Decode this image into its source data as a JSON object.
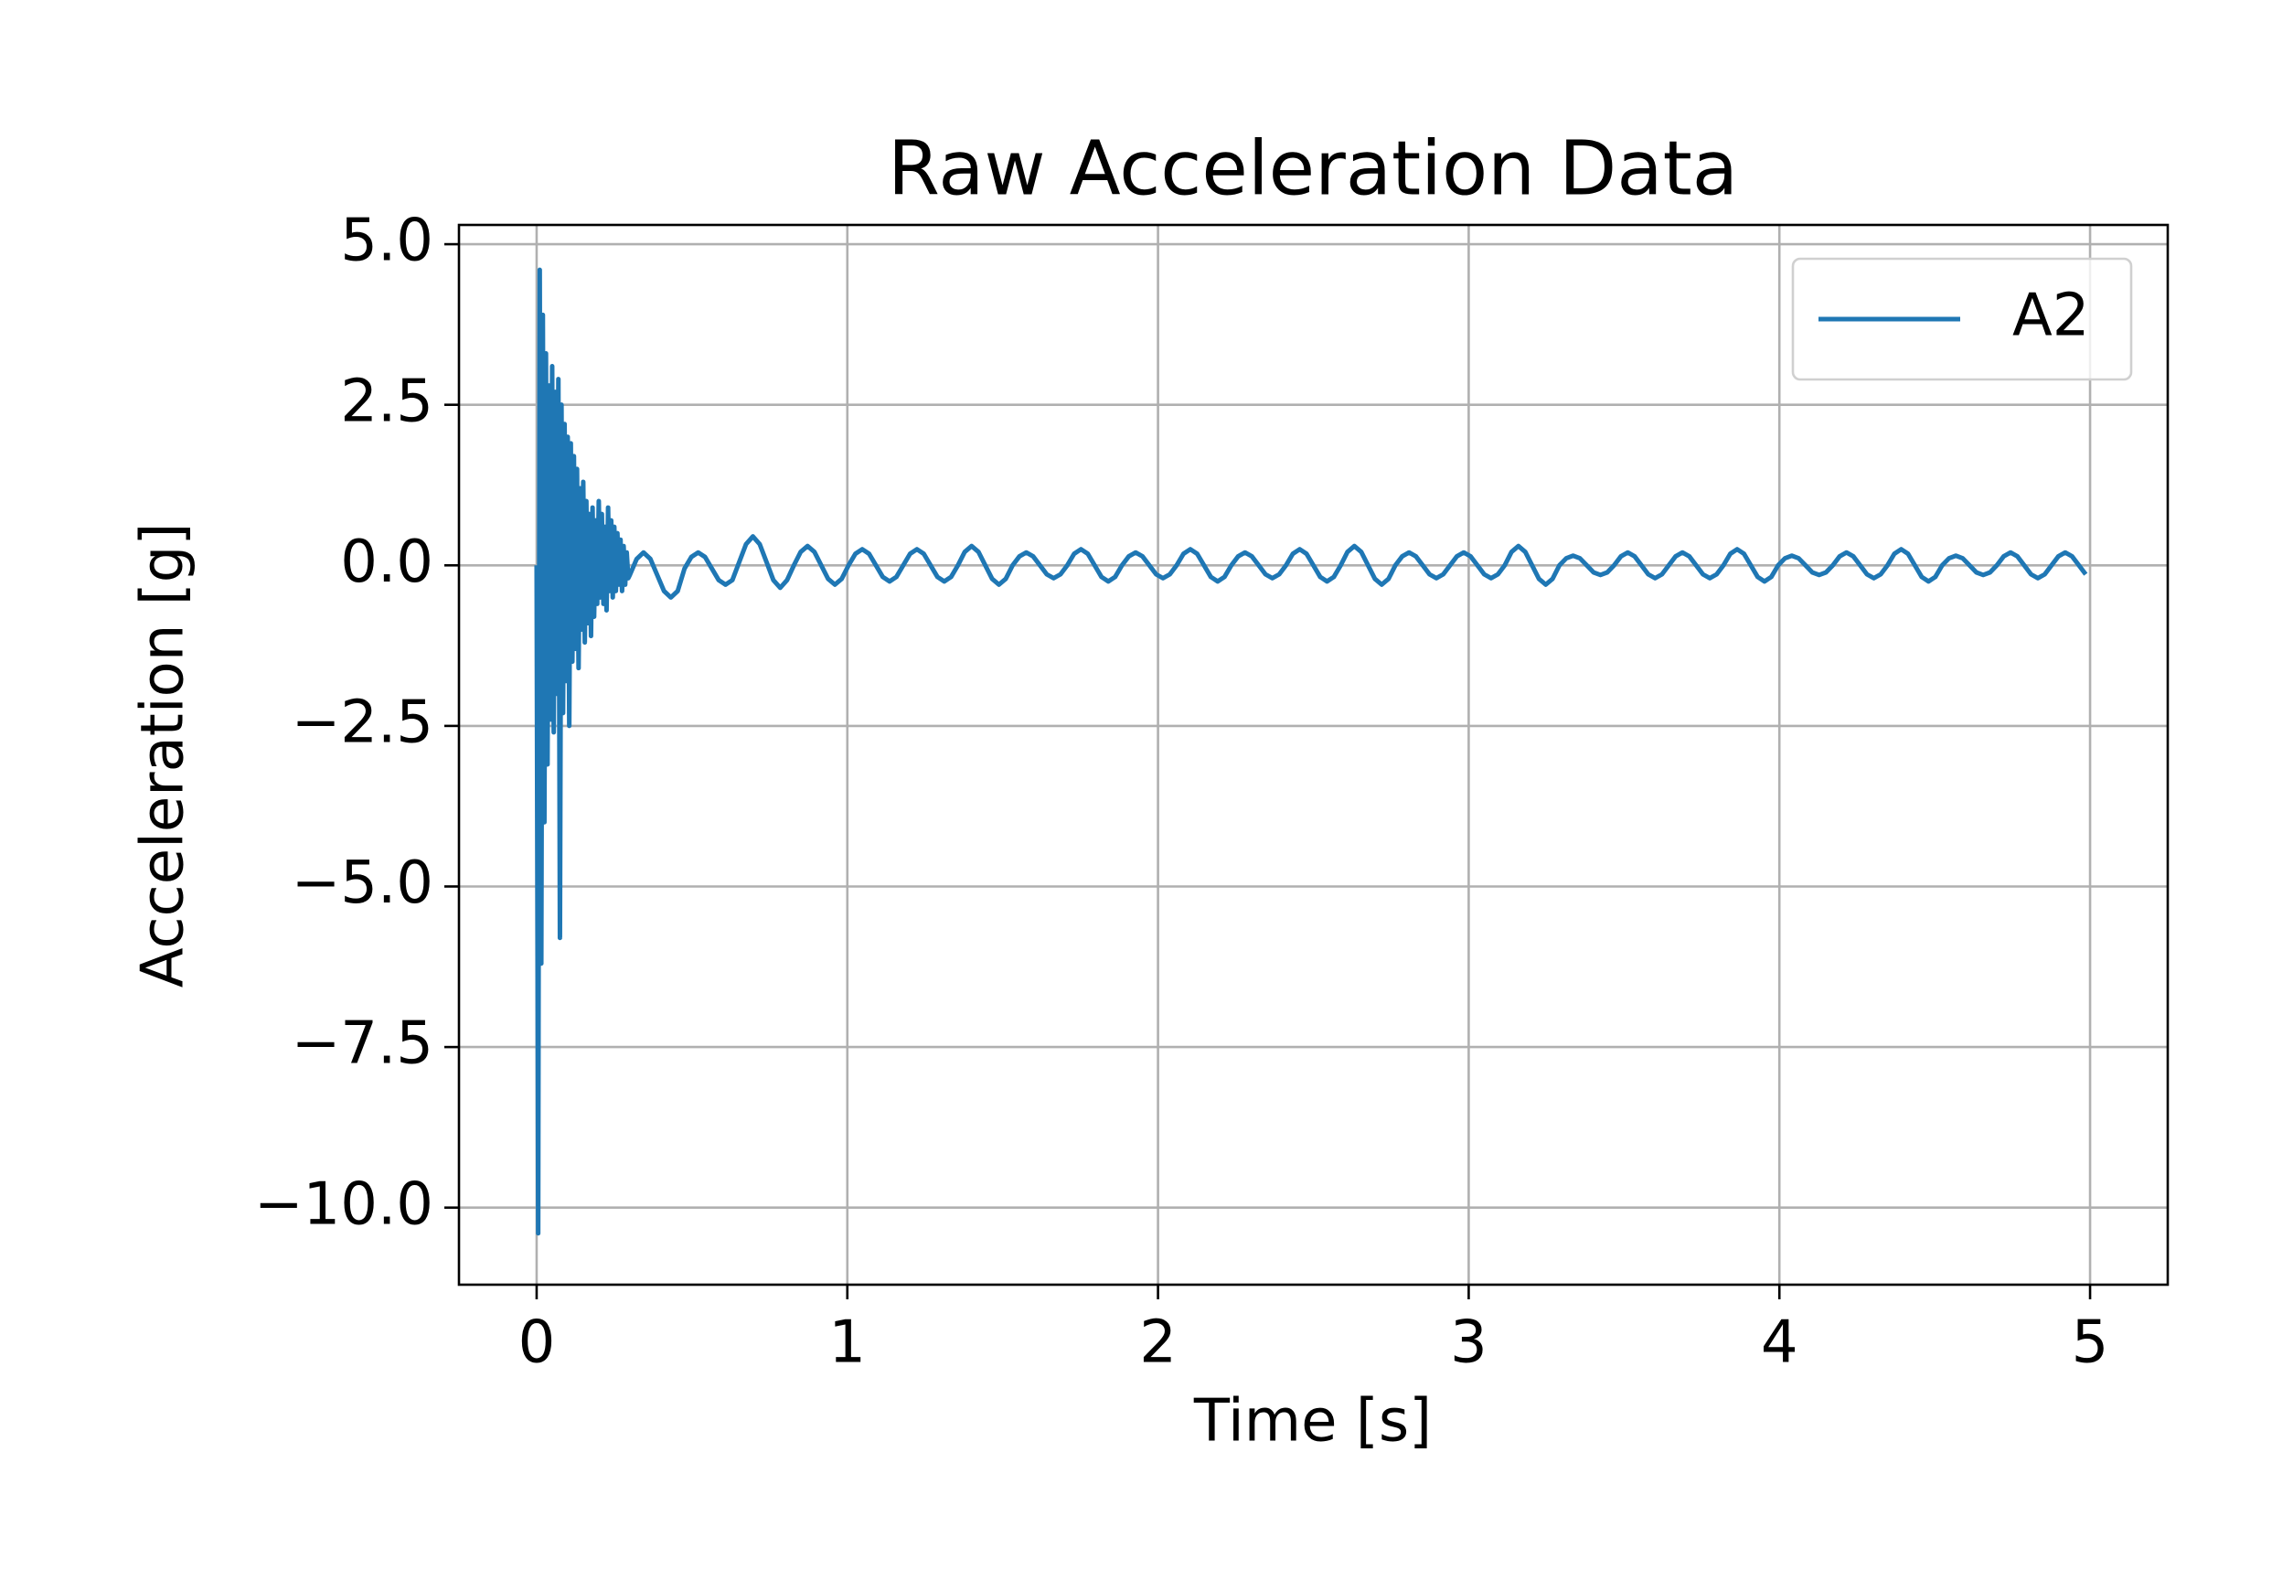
{
  "chart_data": {
    "type": "line",
    "title": "Raw Acceleration Data",
    "x_label": "Time [s]",
    "y_label": "Acceleration [g]",
    "xlim": [
      -0.25,
      5.25
    ],
    "ylim": [
      -11.2,
      5.3
    ],
    "xticks": [
      0,
      1,
      2,
      3,
      4,
      5
    ],
    "yticks": [
      {
        "value": -10,
        "label": "−10.0"
      },
      {
        "value": -7.5,
        "label": "−7.5"
      },
      {
        "value": -5,
        "label": "−5.0"
      },
      {
        "value": -2.5,
        "label": "−2.5"
      },
      {
        "value": 0,
        "label": "0.0"
      },
      {
        "value": 2.5,
        "label": "2.5"
      },
      {
        "value": 5,
        "label": "5.0"
      }
    ],
    "grid": true,
    "legend": "upper right",
    "x": [
      0,
      0.005,
      0.01,
      0.015,
      0.02,
      0.025,
      0.03,
      0.035,
      0.04,
      0.045,
      0.05,
      0.055,
      0.06,
      0.065,
      0.07,
      0.075,
      0.08,
      0.085,
      0.09,
      0.095,
      0.1,
      0.105,
      0.11,
      0.115,
      0.12,
      0.125,
      0.13,
      0.135,
      0.14,
      0.145,
      0.15,
      0.155,
      0.16,
      0.165,
      0.17,
      0.175,
      0.18,
      0.185,
      0.19,
      0.195,
      0.2,
      0.205,
      0.21,
      0.215,
      0.22,
      0.225,
      0.23,
      0.235,
      0.24,
      0.245,
      0.25,
      0.255,
      0.26,
      0.265,
      0.27,
      0.275,
      0.28,
      0.285,
      0.29,
      0.295,
      0.3,
      0.322,
      0.344,
      0.366,
      0.388,
      0.41,
      0.432,
      0.454,
      0.476,
      0.498,
      0.52,
      0.542,
      0.564,
      0.586,
      0.608,
      0.63,
      0.652,
      0.674,
      0.696,
      0.718,
      0.74,
      0.762,
      0.784,
      0.806,
      0.828,
      0.85,
      0.872,
      0.894,
      0.916,
      0.938,
      0.96,
      0.982,
      1.004,
      1.026,
      1.048,
      1.07,
      1.092,
      1.114,
      1.136,
      1.158,
      1.18,
      1.202,
      1.224,
      1.246,
      1.268,
      1.29,
      1.312,
      1.334,
      1.356,
      1.378,
      1.4,
      1.422,
      1.444,
      1.466,
      1.488,
      1.51,
      1.532,
      1.554,
      1.576,
      1.598,
      1.62,
      1.642,
      1.664,
      1.686,
      1.708,
      1.73,
      1.752,
      1.774,
      1.796,
      1.818,
      1.84,
      1.862,
      1.884,
      1.906,
      1.928,
      1.95,
      1.972,
      1.994,
      2.016,
      2.038,
      2.06,
      2.082,
      2.104,
      2.126,
      2.148,
      2.17,
      2.192,
      2.214,
      2.236,
      2.258,
      2.28,
      2.302,
      2.324,
      2.346,
      2.368,
      2.39,
      2.412,
      2.434,
      2.456,
      2.478,
      2.5,
      2.522,
      2.544,
      2.566,
      2.588,
      2.61,
      2.632,
      2.654,
      2.676,
      2.698,
      2.72,
      2.742,
      2.764,
      2.786,
      2.808,
      2.83,
      2.852,
      2.874,
      2.896,
      2.918,
      2.94,
      2.962,
      2.984,
      3.006,
      3.028,
      3.05,
      3.072,
      3.094,
      3.116,
      3.138,
      3.16,
      3.182,
      3.204,
      3.226,
      3.248,
      3.27,
      3.292,
      3.314,
      3.336,
      3.358,
      3.38,
      3.402,
      3.424,
      3.446,
      3.468,
      3.49,
      3.512,
      3.534,
      3.556,
      3.578,
      3.6,
      3.622,
      3.644,
      3.666,
      3.688,
      3.71,
      3.732,
      3.754,
      3.776,
      3.798,
      3.82,
      3.842,
      3.864,
      3.886,
      3.908,
      3.93,
      3.952,
      3.974,
      3.996,
      4.018,
      4.04,
      4.062,
      4.084,
      4.106,
      4.128,
      4.15,
      4.172,
      4.194,
      4.216,
      4.238,
      4.26,
      4.282,
      4.304,
      4.326,
      4.348,
      4.37,
      4.392,
      4.414,
      4.436,
      4.458,
      4.48,
      4.502,
      4.524,
      4.546,
      4.568,
      4.59,
      4.612,
      4.634,
      4.656,
      4.678,
      4.7,
      4.722,
      4.744,
      4.766,
      4.788,
      4.81,
      4.832,
      4.854,
      4.876,
      4.898,
      4.92,
      4.942,
      4.964,
      4.986
    ],
    "series": [
      {
        "name": "A2",
        "color": "#1f77b4",
        "values": [
          0,
          -10.4,
          4.6,
          -6.2,
          3.9,
          -4.0,
          3.3,
          -3.1,
          2.8,
          -2.4,
          3.1,
          -2.6,
          2.7,
          -2.0,
          2.9,
          -5.8,
          2.5,
          -2.3,
          2.2,
          -1.8,
          2.0,
          -2.5,
          1.9,
          -1.5,
          1.7,
          -1.3,
          1.5,
          -1.6,
          1.2,
          -1.0,
          1.3,
          -1.2,
          1.0,
          -0.9,
          0.8,
          -1.1,
          0.9,
          -0.8,
          0.7,
          -0.6,
          1.0,
          -0.5,
          0.8,
          -0.6,
          0.6,
          -0.7,
          0.9,
          -0.4,
          0.7,
          -0.5,
          0.6,
          -0.4,
          0.5,
          -0.3,
          0.4,
          -0.4,
          0.3,
          -0.3,
          0.2,
          -0.2,
          -0.15,
          0.1,
          0.2,
          0.1,
          -0.15,
          -0.4,
          -0.5,
          -0.4,
          -0.05,
          0.13,
          0.2,
          0.13,
          -0.05,
          -0.23,
          -0.3,
          -0.23,
          0.05,
          0.33,
          0.45,
          0.33,
          0.05,
          -0.23,
          -0.35,
          -0.23,
          0,
          0.21,
          0.3,
          0.21,
          0,
          -0.21,
          -0.3,
          -0.21,
          0,
          0.18,
          0.25,
          0.18,
          0,
          -0.18,
          -0.25,
          -0.18,
          0,
          0.18,
          0.25,
          0.18,
          0,
          -0.18,
          -0.25,
          -0.18,
          0,
          0.21,
          0.3,
          0.21,
          0,
          -0.21,
          -0.3,
          -0.21,
          0,
          0.14,
          0.2,
          0.14,
          0,
          -0.14,
          -0.2,
          -0.14,
          0,
          0.18,
          0.25,
          0.18,
          0,
          -0.18,
          -0.25,
          -0.18,
          0,
          0.14,
          0.2,
          0.14,
          0,
          -0.14,
          -0.2,
          -0.14,
          0,
          0.18,
          0.25,
          0.18,
          0,
          -0.18,
          -0.25,
          -0.18,
          0,
          0.14,
          0.2,
          0.14,
          0,
          -0.14,
          -0.2,
          -0.14,
          0,
          0.18,
          0.25,
          0.18,
          0,
          -0.18,
          -0.25,
          -0.18,
          0,
          0.21,
          0.3,
          0.21,
          0,
          -0.21,
          -0.3,
          -0.21,
          0,
          0.14,
          0.2,
          0.14,
          0,
          -0.14,
          -0.2,
          -0.14,
          0,
          0.14,
          0.2,
          0.14,
          0,
          -0.14,
          -0.2,
          -0.14,
          0,
          0.21,
          0.3,
          0.21,
          0,
          -0.21,
          -0.3,
          -0.21,
          0,
          0.11,
          0.15,
          0.11,
          0,
          -0.11,
          -0.15,
          -0.11,
          0,
          0.14,
          0.2,
          0.14,
          0,
          -0.14,
          -0.2,
          -0.14,
          0,
          0.14,
          0.2,
          0.14,
          0,
          -0.14,
          -0.2,
          -0.14,
          0,
          0.18,
          0.25,
          0.18,
          0,
          -0.18,
          -0.25,
          -0.18,
          0,
          0.11,
          0.15,
          0.11,
          0,
          -0.11,
          -0.15,
          -0.11,
          0,
          0.14,
          0.2,
          0.14,
          0,
          -0.14,
          -0.2,
          -0.14,
          0,
          0.18,
          0.25,
          0.18,
          0,
          -0.18,
          -0.25,
          -0.18,
          0,
          0.11,
          0.15,
          0.11,
          0,
          -0.11,
          -0.15,
          -0.11,
          0,
          0.14,
          0.2,
          0.14,
          0,
          -0.14,
          -0.2,
          -0.14,
          0,
          0.14,
          0.2,
          0.14,
          0,
          -0.14
        ]
      }
    ]
  }
}
